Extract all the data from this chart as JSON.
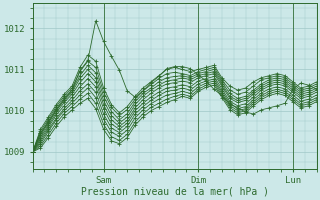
{
  "title": "Pression niveau de la mer( hPa )",
  "xlabel": "Pression niveau de la mer( hPa )",
  "bg_color": "#cce8e8",
  "line_color": "#2d6a2d",
  "grid_color": "#a0c8c8",
  "yticks": [
    1009,
    1010,
    1011,
    1012
  ],
  "ylim": [
    1008.6,
    1012.6
  ],
  "xlim": [
    0,
    72
  ],
  "xtick_positions": [
    18,
    42,
    66
  ],
  "xtick_labels": [
    "Sam",
    "Dim",
    "Lun"
  ],
  "series": [
    [
      1009.0,
      1009.55,
      1009.85,
      1010.15,
      1010.4,
      1010.6,
      1011.05,
      1011.35,
      1011.2,
      1010.55,
      1010.15,
      1009.95,
      1010.1,
      1010.35,
      1010.55,
      1010.7,
      1010.85,
      1011.0,
      1011.05,
      1011.0,
      1010.95,
      1011.0,
      1011.05,
      1011.1,
      1010.8,
      1010.6,
      1010.5,
      1010.55,
      1010.7,
      1010.8,
      1010.85,
      1010.9,
      1010.85,
      1010.7,
      1010.55,
      1010.6,
      1010.7
    ],
    [
      1009.0,
      1009.5,
      1009.8,
      1010.1,
      1010.35,
      1010.55,
      1010.95,
      1011.2,
      1011.05,
      1010.45,
      1010.08,
      1009.88,
      1010.03,
      1010.28,
      1010.48,
      1010.63,
      1010.78,
      1010.9,
      1010.93,
      1010.9,
      1010.85,
      1010.95,
      1011.0,
      1011.05,
      1010.75,
      1010.5,
      1010.4,
      1010.45,
      1010.6,
      1010.75,
      1010.8,
      1010.85,
      1010.8,
      1010.65,
      1010.5,
      1010.55,
      1010.65
    ],
    [
      1009.0,
      1009.45,
      1009.75,
      1010.05,
      1010.3,
      1010.5,
      1010.85,
      1011.1,
      1010.92,
      1010.35,
      1009.98,
      1009.78,
      1009.93,
      1010.22,
      1010.42,
      1010.55,
      1010.7,
      1010.8,
      1010.83,
      1010.85,
      1010.8,
      1010.9,
      1010.95,
      1011.0,
      1010.7,
      1010.42,
      1010.3,
      1010.35,
      1010.5,
      1010.65,
      1010.75,
      1010.8,
      1010.75,
      1010.6,
      1010.45,
      1010.5,
      1010.6
    ],
    [
      1009.0,
      1009.4,
      1009.7,
      1010.0,
      1010.25,
      1010.45,
      1010.78,
      1011.0,
      1010.8,
      1010.25,
      1009.88,
      1009.7,
      1009.85,
      1010.15,
      1010.35,
      1010.5,
      1010.62,
      1010.72,
      1010.75,
      1010.8,
      1010.75,
      1010.85,
      1010.9,
      1010.95,
      1010.65,
      1010.35,
      1010.25,
      1010.3,
      1010.45,
      1010.6,
      1010.7,
      1010.75,
      1010.7,
      1010.55,
      1010.4,
      1010.45,
      1010.55
    ],
    [
      1009.0,
      1009.35,
      1009.65,
      1009.95,
      1010.2,
      1010.4,
      1010.68,
      1010.9,
      1010.7,
      1010.15,
      1009.78,
      1009.62,
      1009.77,
      1010.07,
      1010.27,
      1010.42,
      1010.55,
      1010.65,
      1010.68,
      1010.72,
      1010.68,
      1010.8,
      1010.85,
      1010.9,
      1010.6,
      1010.3,
      1010.2,
      1010.25,
      1010.4,
      1010.55,
      1010.65,
      1010.7,
      1010.65,
      1010.5,
      1010.35,
      1010.4,
      1010.5
    ],
    [
      1009.0,
      1009.3,
      1009.6,
      1009.9,
      1010.12,
      1010.33,
      1010.58,
      1010.78,
      1010.58,
      1010.05,
      1009.68,
      1009.55,
      1009.7,
      1010.0,
      1010.18,
      1010.33,
      1010.45,
      1010.55,
      1010.58,
      1010.63,
      1010.58,
      1010.72,
      1010.78,
      1010.83,
      1010.53,
      1010.23,
      1010.12,
      1010.17,
      1010.33,
      1010.5,
      1010.6,
      1010.65,
      1010.6,
      1010.45,
      1010.3,
      1010.35,
      1010.45
    ],
    [
      1009.0,
      1009.25,
      1009.55,
      1009.82,
      1010.05,
      1010.25,
      1010.48,
      1010.65,
      1010.45,
      1009.92,
      1009.58,
      1009.47,
      1009.62,
      1009.92,
      1010.1,
      1010.25,
      1010.37,
      1010.47,
      1010.5,
      1010.55,
      1010.5,
      1010.65,
      1010.72,
      1010.77,
      1010.47,
      1010.18,
      1010.05,
      1010.1,
      1010.27,
      1010.43,
      1010.53,
      1010.58,
      1010.53,
      1010.38,
      1010.23,
      1010.28,
      1010.38
    ],
    [
      1009.0,
      1009.2,
      1009.5,
      1009.78,
      1010.0,
      1010.18,
      1010.38,
      1010.55,
      1010.32,
      1009.8,
      1009.48,
      1009.38,
      1009.53,
      1009.83,
      1010.02,
      1010.17,
      1010.28,
      1010.38,
      1010.42,
      1010.47,
      1010.42,
      1010.58,
      1010.67,
      1010.72,
      1010.42,
      1010.13,
      1010.0,
      1010.05,
      1010.22,
      1010.37,
      1010.47,
      1010.52,
      1010.47,
      1010.32,
      1010.17,
      1010.22,
      1010.32
    ],
    [
      1009.0,
      1009.15,
      1009.42,
      1009.7,
      1009.93,
      1010.1,
      1010.28,
      1010.42,
      1010.18,
      1009.67,
      1009.37,
      1009.28,
      1009.43,
      1009.73,
      1009.93,
      1010.08,
      1010.18,
      1010.28,
      1010.35,
      1010.4,
      1010.35,
      1010.52,
      1010.62,
      1010.67,
      1010.37,
      1010.08,
      1009.95,
      1010.0,
      1010.17,
      1010.32,
      1010.42,
      1010.47,
      1010.42,
      1010.27,
      1010.12,
      1010.17,
      1010.27
    ],
    [
      1009.0,
      1009.1,
      1009.35,
      1009.62,
      1009.85,
      1010.02,
      1010.18,
      1010.3,
      1010.05,
      1009.55,
      1009.27,
      1009.2,
      1009.35,
      1009.65,
      1009.85,
      1010.0,
      1010.1,
      1010.2,
      1010.27,
      1010.35,
      1010.3,
      1010.47,
      1010.57,
      1010.62,
      1010.32,
      1010.03,
      1009.9,
      1009.95,
      1010.12,
      1010.27,
      1010.37,
      1010.42,
      1010.37,
      1010.22,
      1010.07,
      1010.12,
      1010.22
    ],
    [
      1009.0,
      1009.45,
      1009.72,
      1010.02,
      1010.27,
      1010.5,
      1010.97,
      1011.22,
      1012.18,
      1011.68,
      1011.32,
      1010.98,
      1010.48,
      1010.33,
      1010.48,
      1010.68,
      1010.83,
      1011.02,
      1011.07,
      1011.07,
      1011.02,
      1010.87,
      1010.72,
      1010.52,
      1010.37,
      1010.17,
      1010.07,
      1009.97,
      1009.92,
      1010.02,
      1010.07,
      1010.12,
      1010.18,
      1010.52,
      1010.67,
      1010.62,
      1010.52
    ]
  ]
}
